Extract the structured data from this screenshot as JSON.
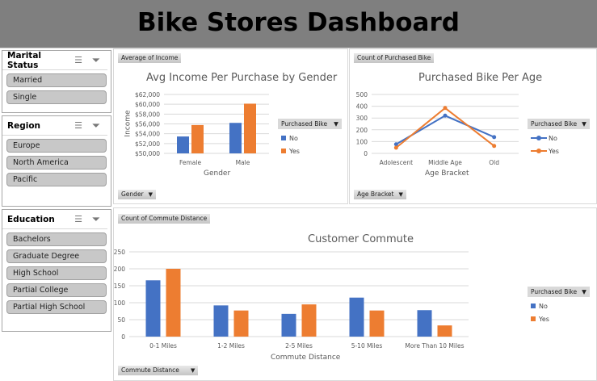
{
  "header": {
    "title": "Bike Stores Dashboard"
  },
  "slicers": [
    {
      "title": "Marital Status",
      "items": [
        "Married",
        "Single"
      ]
    },
    {
      "title": "Region",
      "items": [
        "Europe",
        "North America",
        "Pacific"
      ]
    },
    {
      "title": "Education",
      "items": [
        "Bachelors",
        "Graduate Degree",
        "High School",
        "Partial College",
        "Partial High School"
      ]
    }
  ],
  "colors": {
    "no": "#4472c4",
    "yes": "#ed7d31"
  },
  "chart_data": [
    {
      "type": "bar",
      "title": "Avg Income Per Purchase by Gender",
      "value_button": "Average of Income",
      "axis_button": "Gender",
      "xlabel": "Gender",
      "ylabel": "Income",
      "legend_title": "Purchased Bike",
      "categories": [
        "Female",
        "Male"
      ],
      "yticks": [
        "$50,000",
        "$52,000",
        "$54,000",
        "$56,000",
        "$58,000",
        "$60,000",
        "$62,000"
      ],
      "ylim": [
        50000,
        62000
      ],
      "series": [
        {
          "name": "No",
          "values": [
            53440,
            56210
          ]
        },
        {
          "name": "Yes",
          "values": [
            55770,
            60120
          ]
        }
      ],
      "legend": "right"
    },
    {
      "type": "line",
      "title": "Purchased Bike Per Age",
      "value_button": "Count of Purchased Bike",
      "axis_button": "Age Bracket",
      "xlabel": "Age Bracket",
      "legend_title": "Purchased Bike",
      "categories": [
        "Adolescent",
        "Middle Age",
        "Old"
      ],
      "yticks": [
        "0",
        "100",
        "200",
        "300",
        "400",
        "500"
      ],
      "ylim": [
        0,
        500
      ],
      "series": [
        {
          "name": "No",
          "values": [
            77,
            320,
            138
          ]
        },
        {
          "name": "Yes",
          "values": [
            48,
            385,
            63
          ]
        }
      ],
      "legend": "right"
    },
    {
      "type": "bar",
      "title": "Customer Commute",
      "value_button": "Count of Commute Distance",
      "axis_button": "Commute Distance",
      "xlabel": "Commute Distance",
      "legend_title": "Purchased Bike",
      "categories": [
        "0-1 Miles",
        "1-2 Miles",
        "2-5 Miles",
        "5-10 Miles",
        "More Than 10 Miles"
      ],
      "yticks": [
        "0",
        "50",
        "100",
        "150",
        "200",
        "250"
      ],
      "ylim": [
        0,
        250
      ],
      "series": [
        {
          "name": "No",
          "values": [
            166,
            92,
            67,
            115,
            78
          ]
        },
        {
          "name": "Yes",
          "values": [
            200,
            77,
            95,
            77,
            33
          ]
        }
      ],
      "legend": "right"
    }
  ]
}
